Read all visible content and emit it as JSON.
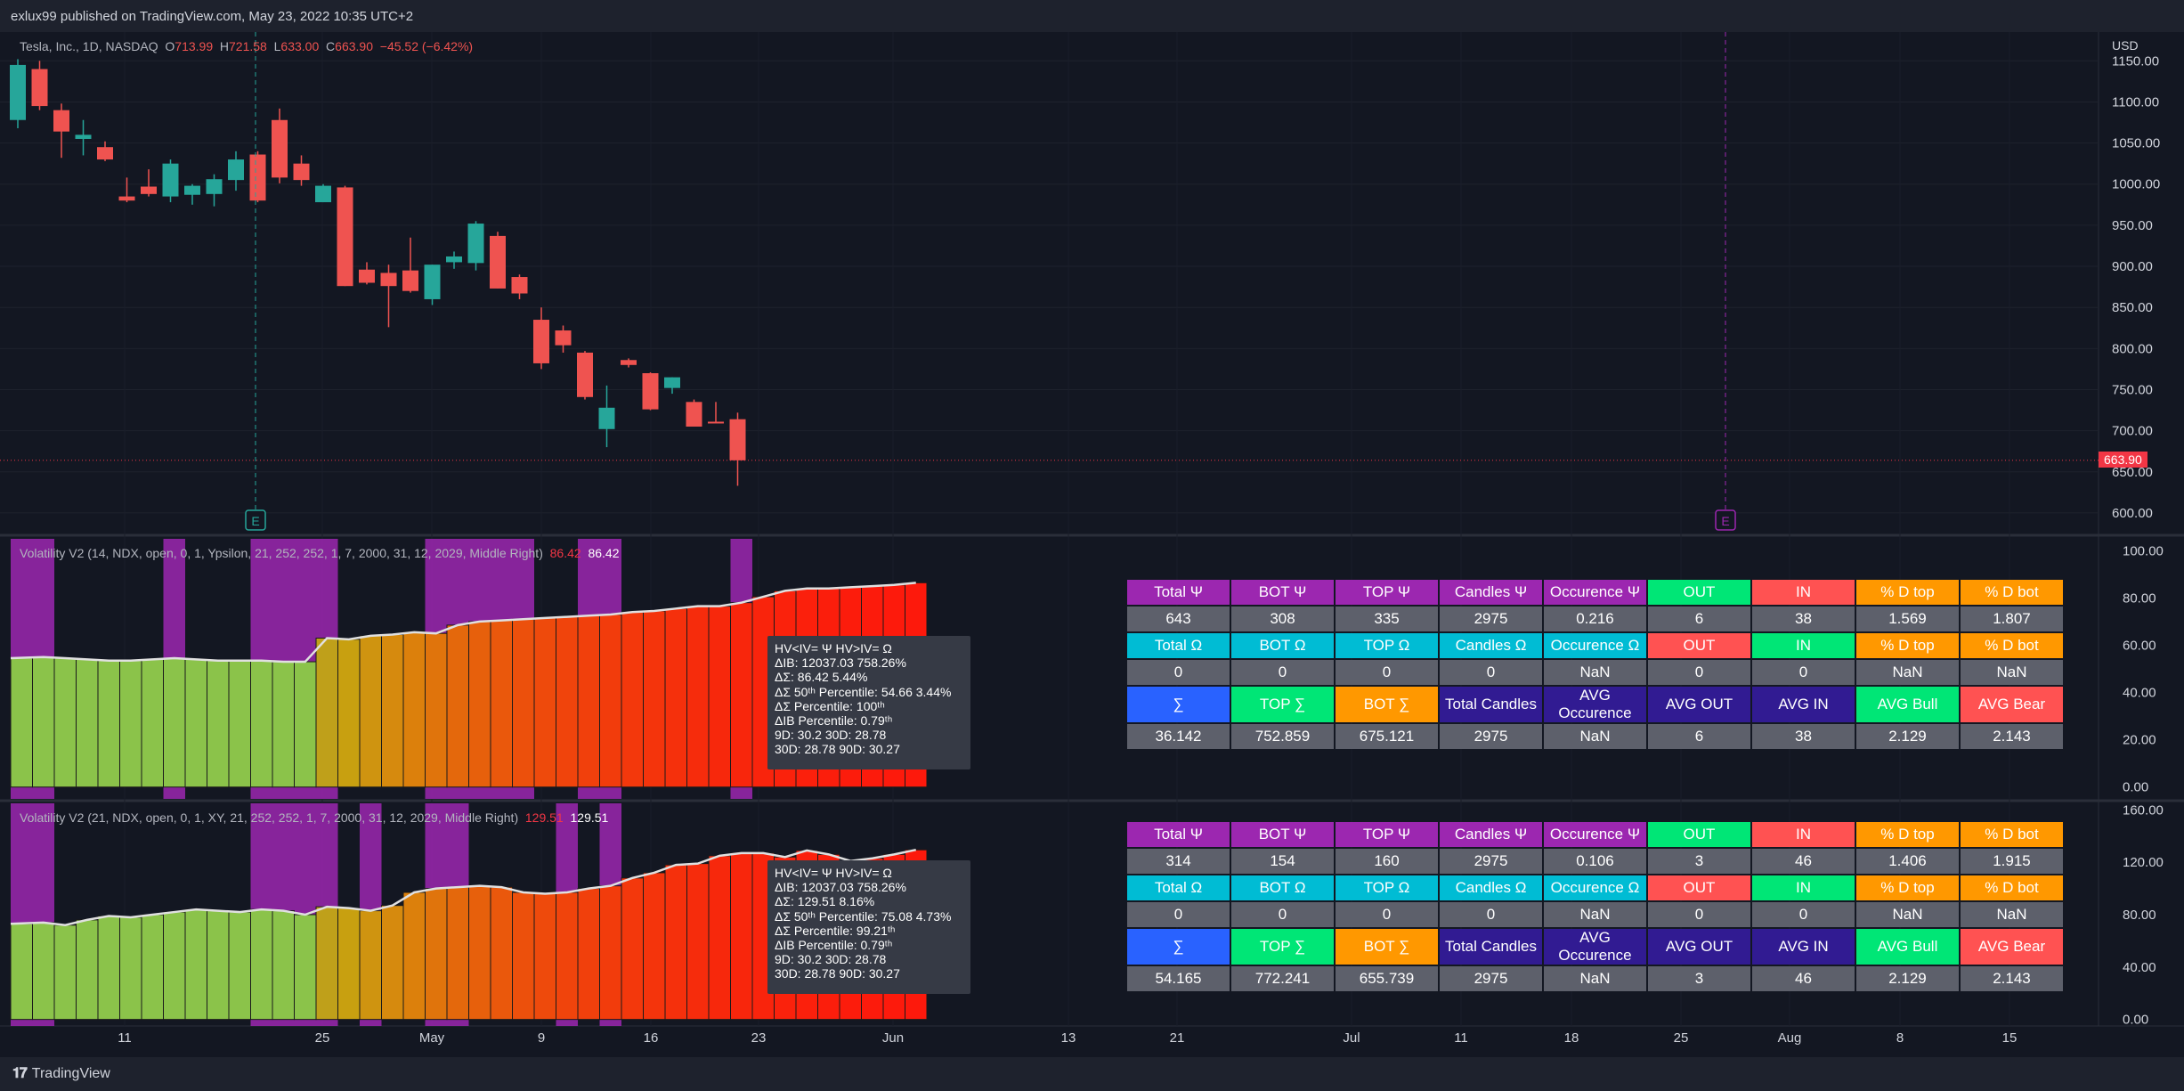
{
  "header": {
    "published": "exlux99 published on TradingView.com, May 23, 2022 10:35 UTC+2"
  },
  "footer": {
    "brand_logo": "𝟏𝟕",
    "brand": "TradingView"
  },
  "legend": {
    "symbol": "Tesla, Inc., 1D, NASDAQ",
    "o_label": "O",
    "o": "713.99",
    "h_label": "H",
    "h": "721.58",
    "l_label": "L",
    "l": "633.00",
    "c_label": "C",
    "c": "663.90",
    "change": "−45.52 (−6.42%)"
  },
  "axis": {
    "currency": "USD",
    "last_price": "663.90"
  },
  "indicator1": {
    "title": "Volatility V2 (14, NDX, open, 0, 1, Ypsilon, 21, 252, 252, 1, 7, 2000, 31, 12, 2029, Middle Right)",
    "value_a": "86.42",
    "value_b": "86.42",
    "info": [
      "HV<IV= Ψ  HV>IV= Ω",
      "ΔIB: 12037.03  758.26%",
      "ΔΣ: 86.42  5.44%",
      "ΔΣ 50ᵗʰ Percentile: 54.66  3.44%",
      "ΔΣ Percentile: 100ᵗʰ",
      "ΔIB Percentile: 0.79ᵗʰ",
      "9D: 30.2  30D: 28.78",
      "30D: 28.78  90D: 30.27"
    ],
    "table": [
      [
        "Total Ψ",
        "BOT Ψ",
        "TOP Ψ",
        "Candles Ψ",
        "Occurence Ψ",
        "OUT",
        "IN",
        "% D top",
        "% D bot"
      ],
      [
        "643",
        "308",
        "335",
        "2975",
        "0.216",
        "6",
        "38",
        "1.569",
        "1.807"
      ],
      [
        "Total Ω",
        "BOT Ω",
        "TOP Ω",
        "Candles Ω",
        "Occurence Ω",
        "OUT",
        "IN",
        "% D top",
        "% D bot"
      ],
      [
        "0",
        "0",
        "0",
        "0",
        "NaN",
        "0",
        "0",
        "NaN",
        "NaN"
      ],
      [
        "∑",
        "TOP ∑",
        "BOT ∑",
        "Total Candles",
        "AVG Occurence",
        "AVG OUT",
        "AVG IN",
        "AVG Bull",
        "AVG Bear"
      ],
      [
        "36.142",
        "752.859",
        "675.121",
        "2975",
        "NaN",
        "6",
        "38",
        "2.129",
        "2.143"
      ]
    ]
  },
  "indicator2": {
    "title": "Volatility V2 (21, NDX, open, 0, 1, XY, 21, 252, 252, 1, 7, 2000, 31, 12, 2029, Middle Right)",
    "value_a": "129.51",
    "value_b": "129.51",
    "info": [
      "HV<IV= Ψ  HV>IV= Ω",
      "ΔIB: 12037.03  758.26%",
      "ΔΣ: 129.51  8.16%",
      "ΔΣ 50ᵗʰ Percentile: 75.08  4.73%",
      "ΔΣ Percentile: 99.21ᵗʰ",
      "ΔIB Percentile: 0.79ᵗʰ",
      "9D: 30.2  30D: 28.78",
      "30D: 28.78  90D: 30.27"
    ],
    "table": [
      [
        "Total Ψ",
        "BOT Ψ",
        "TOP Ψ",
        "Candles Ψ",
        "Occurence Ψ",
        "OUT",
        "IN",
        "% D top",
        "% D bot"
      ],
      [
        "314",
        "154",
        "160",
        "2975",
        "0.106",
        "3",
        "46",
        "1.406",
        "1.915"
      ],
      [
        "Total Ω",
        "BOT Ω",
        "TOP Ω",
        "Candles Ω",
        "Occurence Ω",
        "OUT",
        "IN",
        "% D top",
        "% D bot"
      ],
      [
        "0",
        "0",
        "0",
        "0",
        "NaN",
        "0",
        "0",
        "NaN",
        "NaN"
      ],
      [
        "∑",
        "TOP ∑",
        "BOT ∑",
        "Total Candles",
        "AVG Occurence",
        "AVG OUT",
        "AVG IN",
        "AVG Bull",
        "AVG Bear"
      ],
      [
        "54.165",
        "772.241",
        "655.739",
        "2975",
        "NaN",
        "3",
        "46",
        "2.129",
        "2.143"
      ]
    ]
  },
  "table_header_colors": [
    [
      "#9c27b0",
      "#9c27b0",
      "#9c27b0",
      "#9c27b0",
      "#9c27b0",
      "#00e676",
      "#ff5252",
      "#ff9800",
      "#ff9800"
    ],
    [
      "#00bcd4",
      "#00bcd4",
      "#00bcd4",
      "#00bcd4",
      "#00bcd4",
      "#ff5252",
      "#00e676",
      "#ff9800",
      "#ff9800"
    ],
    [
      "#2962ff",
      "#00e676",
      "#ff9800",
      "#311b92",
      "#311b92",
      "#311b92",
      "#311b92",
      "#00e676",
      "#ff5252"
    ]
  ],
  "colors": {
    "bull": "#26a69a",
    "bear": "#ef5350",
    "band": "#9c27b0",
    "background": "#131722"
  },
  "chart_data": [
    {
      "type": "candlestick",
      "title": "Tesla, Inc., 1D, NASDAQ",
      "ylabel": "USD",
      "ylim": [
        575,
        1185
      ],
      "yticks": [
        "1150.00",
        "1100.00",
        "1050.00",
        "1000.00",
        "950.00",
        "900.00",
        "850.00",
        "800.00",
        "750.00",
        "700.00",
        "650.00",
        "600.00"
      ],
      "xticks": [
        "11",
        "25",
        "May",
        "9",
        "16",
        "23",
        "Jun",
        "13",
        "21",
        "Jul",
        "11",
        "18",
        "25",
        "Aug",
        "8",
        "15"
      ],
      "earnings_markers": [
        "E",
        "E"
      ],
      "candles": [
        {
          "o": 1078,
          "h": 1152,
          "l": 1068,
          "c": 1145
        },
        {
          "o": 1140,
          "h": 1150,
          "l": 1090,
          "c": 1095
        },
        {
          "o": 1090,
          "h": 1098,
          "l": 1032,
          "c": 1064
        },
        {
          "o": 1055,
          "h": 1078,
          "l": 1035,
          "c": 1060
        },
        {
          "o": 1045,
          "h": 1052,
          "l": 1028,
          "c": 1030
        },
        {
          "o": 985,
          "h": 1008,
          "l": 978,
          "c": 980
        },
        {
          "o": 997,
          "h": 1018,
          "l": 985,
          "c": 988
        },
        {
          "o": 985,
          "h": 1030,
          "l": 978,
          "c": 1025
        },
        {
          "o": 987,
          "h": 1000,
          "l": 975,
          "c": 998
        },
        {
          "o": 988,
          "h": 1012,
          "l": 973,
          "c": 1006
        },
        {
          "o": 1005,
          "h": 1040,
          "l": 992,
          "c": 1030
        },
        {
          "o": 1036,
          "h": 1040,
          "l": 978,
          "c": 980
        },
        {
          "o": 1078,
          "h": 1092,
          "l": 1001,
          "c": 1008
        },
        {
          "o": 1025,
          "h": 1035,
          "l": 998,
          "c": 1005
        },
        {
          "o": 978,
          "h": 1000,
          "l": 978,
          "c": 998
        },
        {
          "o": 996,
          "h": 998,
          "l": 876,
          "c": 876
        },
        {
          "o": 896,
          "h": 905,
          "l": 878,
          "c": 880
        },
        {
          "o": 892,
          "h": 902,
          "l": 826,
          "c": 876
        },
        {
          "o": 895,
          "h": 935,
          "l": 868,
          "c": 870
        },
        {
          "o": 860,
          "h": 902,
          "l": 853,
          "c": 902
        },
        {
          "o": 905,
          "h": 918,
          "l": 897,
          "c": 912
        },
        {
          "o": 904,
          "h": 955,
          "l": 895,
          "c": 952
        },
        {
          "o": 937,
          "h": 942,
          "l": 873,
          "c": 873
        },
        {
          "o": 887,
          "h": 890,
          "l": 860,
          "c": 867
        },
        {
          "o": 835,
          "h": 850,
          "l": 775,
          "c": 782
        },
        {
          "o": 822,
          "h": 828,
          "l": 795,
          "c": 804
        },
        {
          "o": 795,
          "h": 797,
          "l": 738,
          "c": 741
        },
        {
          "o": 702,
          "h": 755,
          "l": 680,
          "c": 728
        },
        {
          "o": 786,
          "h": 788,
          "l": 777,
          "c": 780
        },
        {
          "o": 770,
          "h": 771,
          "l": 725,
          "c": 726
        },
        {
          "o": 752,
          "h": 765,
          "l": 745,
          "c": 765
        },
        {
          "o": 735,
          "h": 738,
          "l": 705,
          "c": 705
        },
        {
          "o": 711,
          "h": 735,
          "l": 710,
          "c": 709
        },
        {
          "o": 714,
          "h": 722,
          "l": 633,
          "c": 664
        }
      ]
    },
    {
      "type": "bar",
      "title": "Volatility V2 (14, NDX, open, 0, 1, Ypsilon, 21, 252, 252, 1, 7, 2000, 31, 12, 2029, Middle Right)",
      "ylim": [
        -5,
        105
      ],
      "yticks": [
        "100.00",
        "80.00",
        "60.00",
        "40.00",
        "20.00",
        "0.00"
      ],
      "values": [
        54.5,
        55,
        54.5,
        54,
        53.5,
        53.5,
        54,
        54.5,
        54,
        53.5,
        53.5,
        53.5,
        53,
        53,
        63,
        62.5,
        64,
        64.5,
        65.5,
        65,
        68.5,
        70,
        70.5,
        71,
        71.5,
        72,
        72.5,
        73,
        74,
        74.5,
        75.5,
        76.5,
        76.5,
        78,
        80.5,
        83,
        84,
        84,
        84.5,
        85,
        85.5,
        86.42
      ],
      "band_columns": [
        0,
        1,
        7,
        11,
        12,
        13,
        14,
        19,
        20,
        21,
        22,
        23,
        26,
        27,
        33
      ],
      "bar_colors": [
        "#8bc34a",
        "#8bc34a",
        "#8bc34a",
        "#8bc34a",
        "#8bc34a",
        "#8bc34a",
        "#8bc34a",
        "#8bc34a",
        "#8bc34a",
        "#8bc34a",
        "#8bc34a",
        "#8bc34a",
        "#8bc34a",
        "#8bc34a",
        "#bfa01a",
        "#c8a010",
        "#cf9410",
        "#d68a0e",
        "#dc800c",
        "#e0740c",
        "#e4680c",
        "#e7600c",
        "#ea580c",
        "#ec500c",
        "#ee4a0c",
        "#f0440c",
        "#f1400c",
        "#f23c0c",
        "#f3380c",
        "#f4340c",
        "#f5300c",
        "#f62c0c",
        "#f7280c",
        "#f8260c",
        "#f9240c",
        "#fa220c",
        "#fb200c",
        "#fb1e0c",
        "#fc1c0c",
        "#fc1b0c",
        "#fd1a0c",
        "#fd190c"
      ]
    },
    {
      "type": "bar",
      "title": "Volatility V2 (21, NDX, open, 0, 1, XY, 21, 252, 252, 1, 7, 2000, 31, 12, 2029, Middle Right)",
      "ylim": [
        -5,
        165
      ],
      "yticks": [
        "160.00",
        "120.00",
        "80.00",
        "40.00",
        "0.00"
      ],
      "values": [
        73,
        74,
        72,
        76,
        79,
        78,
        80,
        82,
        84,
        83,
        82,
        84,
        83,
        80,
        86,
        85,
        83,
        87,
        97,
        100,
        101,
        102,
        101,
        97,
        96,
        97,
        100,
        102,
        108,
        112,
        118,
        119,
        125,
        127,
        127,
        124,
        129,
        126,
        121,
        123,
        126,
        129.51
      ],
      "band_columns": [
        0,
        1,
        11,
        12,
        13,
        14,
        16,
        19,
        20,
        25,
        27
      ],
      "bar_colors": [
        "#8bc34a",
        "#8bc34a",
        "#8bc34a",
        "#8bc34a",
        "#8bc34a",
        "#8bc34a",
        "#8bc34a",
        "#8bc34a",
        "#8bc34a",
        "#8bc34a",
        "#8bc34a",
        "#8bc34a",
        "#8bc34a",
        "#8bc34a",
        "#bfa01a",
        "#c8a010",
        "#cf9410",
        "#d68a0e",
        "#dc800c",
        "#e0740c",
        "#e4680c",
        "#e7600c",
        "#ea580c",
        "#ec500c",
        "#ee4a0c",
        "#f0440c",
        "#f1400c",
        "#f23c0c",
        "#f3380c",
        "#f4340c",
        "#f5300c",
        "#f62c0c",
        "#f7280c",
        "#f8260c",
        "#f9240c",
        "#fa220c",
        "#fb200c",
        "#fb1e0c",
        "#fc1c0c",
        "#fc1b0c",
        "#fd1a0c",
        "#fd190c"
      ]
    }
  ]
}
